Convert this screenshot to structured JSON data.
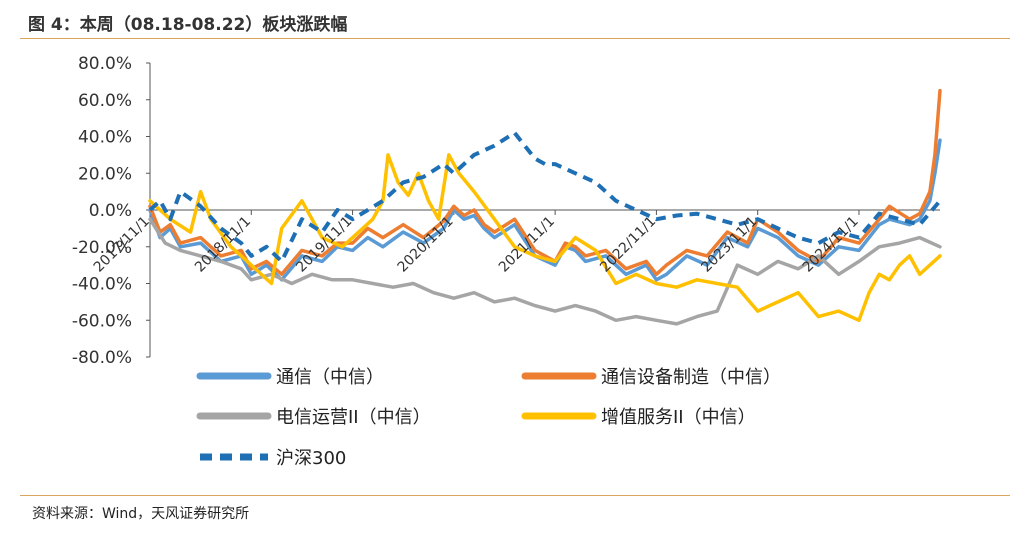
{
  "figure": {
    "title": "图 4：本周（08.18-08.22）板块涨跌幅",
    "source": "资料来源：Wind，天风证券研究所"
  },
  "chart_data": {
    "type": "line",
    "ylim": [
      -80,
      80
    ],
    "y_ticks": [
      80,
      60,
      40,
      20,
      0,
      -20,
      -40,
      -60,
      -80
    ],
    "y_tick_labels": [
      "80.0%",
      "60.0%",
      "40.0%",
      "20.0%",
      "0.0%",
      "-20.0%",
      "-40.0%",
      "-60.0%",
      "-80.0%"
    ],
    "x_tick_labels": [
      "2017/11/1",
      "2018/11/1",
      "2019/11/1",
      "2020/11/1",
      "2021/11/1",
      "2022/11/1",
      "2023/11/1",
      "2024/11/1"
    ],
    "x_tick_positions": [
      0,
      1,
      2,
      3,
      4,
      5,
      6,
      7
    ],
    "x_range": [
      0,
      7.8
    ],
    "grid": false,
    "legend_position": "bottom",
    "series": [
      {
        "name": "通信（中信）",
        "color": "#5b9bd5",
        "dash": "solid",
        "x": [
          0,
          0.1,
          0.2,
          0.3,
          0.5,
          0.7,
          0.9,
          1.0,
          1.15,
          1.3,
          1.5,
          1.7,
          1.85,
          2.0,
          2.15,
          2.3,
          2.5,
          2.7,
          2.9,
          3.0,
          3.1,
          3.2,
          3.3,
          3.4,
          3.6,
          3.8,
          4.0,
          4.1,
          4.2,
          4.3,
          4.5,
          4.7,
          4.9,
          5.0,
          5.1,
          5.3,
          5.5,
          5.7,
          5.9,
          6.0,
          6.2,
          6.4,
          6.6,
          6.8,
          7.0,
          7.2,
          7.3,
          7.5,
          7.6,
          7.7,
          7.75,
          7.8
        ],
        "y": [
          0,
          -15,
          -10,
          -20,
          -18,
          -28,
          -25,
          -35,
          -30,
          -38,
          -25,
          -28,
          -20,
          -22,
          -15,
          -20,
          -12,
          -18,
          -10,
          0,
          -5,
          -3,
          -10,
          -15,
          -8,
          -25,
          -30,
          -20,
          -22,
          -28,
          -25,
          -35,
          -30,
          -38,
          -35,
          -25,
          -30,
          -15,
          -20,
          -10,
          -15,
          -25,
          -30,
          -20,
          -22,
          -8,
          -5,
          -8,
          -5,
          5,
          20,
          38
        ]
      },
      {
        "name": "通信设备制造（中信）",
        "color": "#ed7d31",
        "dash": "solid",
        "x": [
          0,
          0.1,
          0.2,
          0.3,
          0.5,
          0.7,
          0.9,
          1.0,
          1.15,
          1.3,
          1.5,
          1.7,
          1.85,
          2.0,
          2.15,
          2.3,
          2.5,
          2.7,
          2.9,
          3.0,
          3.1,
          3.2,
          3.3,
          3.4,
          3.6,
          3.8,
          4.0,
          4.1,
          4.2,
          4.3,
          4.5,
          4.7,
          4.9,
          5.0,
          5.1,
          5.3,
          5.5,
          5.7,
          5.9,
          6.0,
          6.2,
          6.4,
          6.6,
          6.8,
          7.0,
          7.2,
          7.3,
          7.5,
          7.6,
          7.7,
          7.75,
          7.8
        ],
        "y": [
          2,
          -12,
          -8,
          -18,
          -15,
          -25,
          -22,
          -32,
          -28,
          -35,
          -22,
          -25,
          -18,
          -18,
          -10,
          -15,
          -8,
          -15,
          -6,
          2,
          -3,
          0,
          -8,
          -12,
          -5,
          -22,
          -28,
          -18,
          -20,
          -25,
          -22,
          -32,
          -28,
          -35,
          -30,
          -22,
          -25,
          -12,
          -18,
          -5,
          -12,
          -22,
          -28,
          -15,
          -18,
          -5,
          2,
          -5,
          -2,
          10,
          30,
          65
        ]
      },
      {
        "name": "电信运营II（中信）",
        "color": "#a5a5a5",
        "dash": "solid",
        "x": [
          0,
          0.15,
          0.3,
          0.5,
          0.7,
          0.9,
          1.0,
          1.2,
          1.4,
          1.6,
          1.8,
          2.0,
          2.2,
          2.4,
          2.6,
          2.8,
          3.0,
          3.2,
          3.4,
          3.6,
          3.8,
          4.0,
          4.2,
          4.4,
          4.6,
          4.8,
          5.0,
          5.2,
          5.4,
          5.6,
          5.8,
          6.0,
          6.2,
          6.4,
          6.6,
          6.8,
          7.0,
          7.2,
          7.4,
          7.6,
          7.8
        ],
        "y": [
          -5,
          -18,
          -22,
          -25,
          -28,
          -32,
          -38,
          -35,
          -40,
          -35,
          -38,
          -38,
          -40,
          -42,
          -40,
          -45,
          -48,
          -45,
          -50,
          -48,
          -52,
          -55,
          -52,
          -55,
          -60,
          -58,
          -60,
          -62,
          -58,
          -55,
          -30,
          -35,
          -28,
          -32,
          -25,
          -35,
          -28,
          -20,
          -18,
          -15,
          -20
        ]
      },
      {
        "name": "增值服务II（中信）",
        "color": "#ffc000",
        "dash": "solid",
        "x": [
          0,
          0.2,
          0.4,
          0.5,
          0.6,
          0.8,
          1.0,
          1.2,
          1.3,
          1.5,
          1.7,
          1.9,
          2.1,
          2.2,
          2.3,
          2.35,
          2.45,
          2.55,
          2.65,
          2.75,
          2.85,
          2.95,
          3.05,
          3.2,
          3.4,
          3.6,
          3.8,
          4.0,
          4.2,
          4.4,
          4.6,
          4.8,
          5.0,
          5.2,
          5.4,
          5.6,
          5.8,
          6.0,
          6.2,
          6.4,
          6.6,
          6.8,
          7.0,
          7.1,
          7.2,
          7.3,
          7.4,
          7.5,
          7.6,
          7.7,
          7.8
        ],
        "y": [
          5,
          -5,
          -12,
          10,
          -5,
          -20,
          -30,
          -40,
          -10,
          5,
          -15,
          -20,
          -10,
          -5,
          5,
          30,
          15,
          8,
          20,
          5,
          -5,
          30,
          20,
          10,
          -5,
          -20,
          -25,
          -28,
          -15,
          -22,
          -40,
          -35,
          -40,
          -42,
          -38,
          -40,
          -42,
          -55,
          -50,
          -45,
          -58,
          -55,
          -60,
          -45,
          -35,
          -38,
          -30,
          -25,
          -35,
          -30,
          -25
        ]
      },
      {
        "name": "沪深300",
        "color": "#1f6fb5",
        "dash": "dashed",
        "x": [
          0,
          0.1,
          0.2,
          0.3,
          0.5,
          0.7,
          0.9,
          1.0,
          1.15,
          1.3,
          1.5,
          1.7,
          1.85,
          2.0,
          2.15,
          2.3,
          2.5,
          2.7,
          2.9,
          3.0,
          3.2,
          3.4,
          3.6,
          3.7,
          3.8,
          3.9,
          4.0,
          4.2,
          4.4,
          4.6,
          4.8,
          5.0,
          5.2,
          5.4,
          5.6,
          5.8,
          6.0,
          6.2,
          6.4,
          6.6,
          6.8,
          7.0,
          7.2,
          7.4,
          7.6,
          7.8
        ],
        "y": [
          0,
          5,
          -5,
          10,
          2,
          -10,
          -18,
          -25,
          -20,
          -28,
          -5,
          -12,
          0,
          -5,
          0,
          5,
          15,
          18,
          25,
          20,
          30,
          35,
          42,
          35,
          28,
          25,
          25,
          20,
          15,
          5,
          0,
          -5,
          -3,
          -2,
          -5,
          -8,
          -5,
          -10,
          -15,
          -18,
          -12,
          -15,
          -2,
          -5,
          -8,
          5
        ]
      }
    ]
  }
}
